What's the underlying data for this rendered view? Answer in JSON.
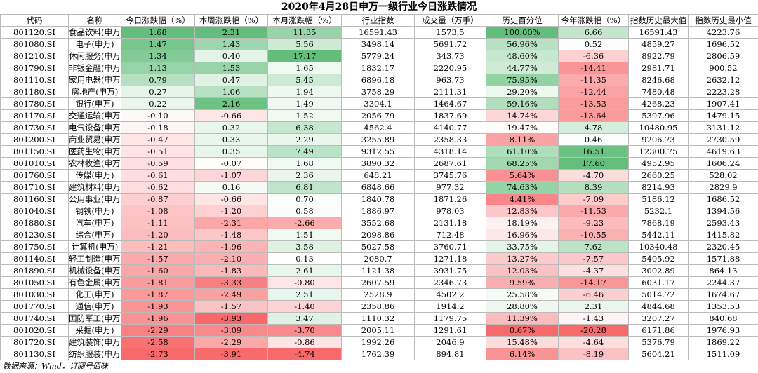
{
  "title": "2020年4月28日申万一级行业今日涨跌情况",
  "table": {
    "header": [
      "代码",
      "名称",
      "今日涨跌幅（%）",
      "本周涨跌幅（%）",
      "本月涨跌幅（%）",
      "行业指数",
      "成交量（万手）",
      "历史百分位",
      "今年涨跌幅（%）",
      "指数历史最大值",
      "指数历史最小值"
    ],
    "rows": [
      [
        "801120.SI",
        "食品饮料(申万)",
        "1.68",
        "2.31",
        "11.35",
        "16591.43",
        "1573.5",
        "100.00%",
        "6.66",
        "16591.43",
        "4223.76"
      ],
      [
        "801080.SI",
        "电子(申万)",
        "1.47",
        "1.43",
        "5.56",
        "3498.14",
        "5691.72",
        "56.96%",
        "0.52",
        "4859.27",
        "1696.52"
      ],
      [
        "801210.SI",
        "休闲服务(申万)",
        "1.34",
        "0.40",
        "17.17",
        "5779.24",
        "343.73",
        "48.60%",
        "-6.36",
        "8922.79",
        "2806.59"
      ],
      [
        "801790.SI",
        "非银金融(申万)",
        "1.13",
        "1.53",
        "1.65",
        "1832.17",
        "2220.95",
        "44.77%",
        "-14.41",
        "2981.71",
        "900.52"
      ],
      [
        "801110.SI",
        "家用电器(申万)",
        "0.79",
        "0.47",
        "5.45",
        "6896.18",
        "963.73",
        "75.95%",
        "-11.35",
        "8246.68",
        "2632.12"
      ],
      [
        "801180.SI",
        "房地产(申万)",
        "0.27",
        "1.06",
        "1.94",
        "3758.29",
        "2111.31",
        "29.20%",
        "-12.44",
        "7480.48",
        "2223.28"
      ],
      [
        "801780.SI",
        "银行(申万)",
        "0.22",
        "2.16",
        "1.49",
        "3304.1",
        "1464.67",
        "59.16%",
        "-13.53",
        "4268.23",
        "1907.41"
      ],
      [
        "801170.SI",
        "交通运输(申万)",
        "-0.10",
        "-0.66",
        "1.52",
        "2056.79",
        "1837.69",
        "14.74%",
        "-13.64",
        "5397.96",
        "1479.15"
      ],
      [
        "801730.SI",
        "电气设备(申万)",
        "-0.18",
        "0.32",
        "6.38",
        "4562.4",
        "4140.77",
        "19.47%",
        "4.78",
        "10480.95",
        "3131.12"
      ],
      [
        "801200.SI",
        "商业贸易(申万)",
        "-0.47",
        "0.33",
        "2.29",
        "3255.89",
        "2358.33",
        "8.11%",
        "0.46",
        "9206.73",
        "2730.59"
      ],
      [
        "801150.SI",
        "医药生物(申万)",
        "-0.51",
        "0.35",
        "7.49",
        "9312.55",
        "4318.14",
        "61.10%",
        "16.51",
        "12300.75",
        "4619.63"
      ],
      [
        "801010.SI",
        "农林牧渔(申万)",
        "-0.59",
        "-0.07",
        "1.68",
        "3890.32",
        "2687.61",
        "68.25%",
        "17.60",
        "4952.95",
        "1606.24"
      ],
      [
        "801760.SI",
        "传媒(申万)",
        "-0.61",
        "-1.07",
        "2.36",
        "648.21",
        "3745.76",
        "5.64%",
        "-4.70",
        "2660.25",
        "528.02"
      ],
      [
        "801710.SI",
        "建筑材料(申万)",
        "-0.62",
        "0.16",
        "6.81",
        "6848.66",
        "977.32",
        "74.63%",
        "8.39",
        "8214.93",
        "2829.9"
      ],
      [
        "801160.SI",
        "公用事业(申万)",
        "-0.87",
        "-0.66",
        "0.70",
        "1840.78",
        "1871.26",
        "4.41%",
        "-7.09",
        "5186.12",
        "1686.52"
      ],
      [
        "801040.SI",
        "钢铁(申万)",
        "-1.08",
        "-1.20",
        "0.58",
        "1886.97",
        "978.03",
        "12.83%",
        "-11.53",
        "5232.1",
        "1394.56"
      ],
      [
        "801880.SI",
        "汽车(申万)",
        "-1.11",
        "-2.31",
        "-2.66",
        "3552.68",
        "2131.18",
        "18.19%",
        "-9.23",
        "7868.19",
        "2593.43"
      ],
      [
        "801230.SI",
        "综合(申万)",
        "-1.20",
        "-1.48",
        "1.51",
        "2098.86",
        "712.48",
        "16.96%",
        "-10.55",
        "5442.11",
        "1415.82"
      ],
      [
        "801750.SI",
        "计算机(申万)",
        "-1.21",
        "-1.96",
        "3.58",
        "5027.58",
        "3760.71",
        "33.75%",
        "7.62",
        "10340.48",
        "2320.45"
      ],
      [
        "801140.SI",
        "轻工制造(申万)",
        "-1.57",
        "-2.10",
        "0.13",
        "2080.7",
        "1271.18",
        "13.27%",
        "-7.57",
        "5405.92",
        "1571.88"
      ],
      [
        "801890.SI",
        "机械设备(申万)",
        "-1.60",
        "-1.83",
        "2.61",
        "1121.38",
        "3931.75",
        "12.03%",
        "-4.37",
        "3002.89",
        "864.13"
      ],
      [
        "801050.SI",
        "有色金属(申万)",
        "-1.81",
        "-3.33",
        "-0.80",
        "2607.59",
        "2346.73",
        "9.59%",
        "-14.17",
        "6031.17",
        "2244.37"
      ],
      [
        "801030.SI",
        "化工(申万)",
        "-1.87",
        "-2.49",
        "2.51",
        "2528.9",
        "4502.2",
        "25.58%",
        "-6.46",
        "5014.72",
        "1674.67"
      ],
      [
        "801770.SI",
        "通信(申万)",
        "-1.93",
        "-1.57",
        "-1.40",
        "2358.86",
        "1914.2",
        "28.80%",
        "2.31",
        "4844.68",
        "1353.53"
      ],
      [
        "801740.SI",
        "国防军工(申万)",
        "-1.96",
        "-3.93",
        "3.47",
        "1110.32",
        "1179.75",
        "11.39%",
        "-1.43",
        "3207.27",
        "840.68"
      ],
      [
        "801020.SI",
        "采掘(申万)",
        "-2.29",
        "-3.09",
        "-3.70",
        "2005.11",
        "1291.61",
        "0.67%",
        "-20.28",
        "6171.86",
        "1976.93"
      ],
      [
        "801720.SI",
        "建筑装饰(申万)",
        "-2.58",
        "-2.29",
        "-0.86",
        "1992.26",
        "2046.9",
        "15.48%",
        "-4.64",
        "5376.79",
        "1869.22"
      ],
      [
        "801130.SI",
        "纺织服装(申万)",
        "-2.73",
        "-3.91",
        "-4.74",
        "1762.39",
        "894.81",
        "6.14%",
        "-8.19",
        "5604.21",
        "1511.09"
      ]
    ]
  },
  "footer": "数据来源：Wind，订阅号佰味"
}
